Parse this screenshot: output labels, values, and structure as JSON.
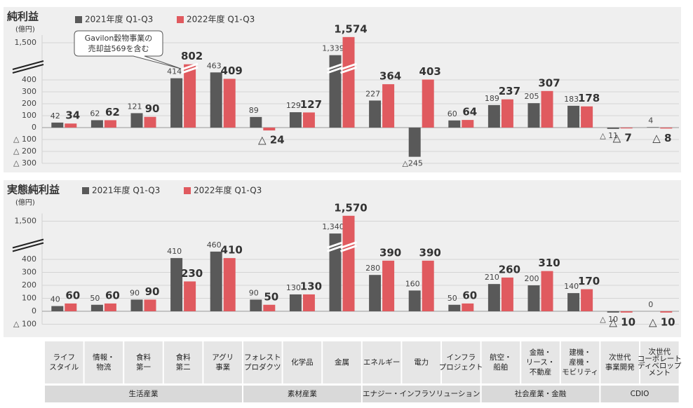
{
  "chart_data": [
    {
      "type": "bar",
      "title": "純利益",
      "y_label": "(億円)",
      "annotation": [
        "Gavilon穀物事業の",
        "売却益569を含む"
      ],
      "series": [
        {
          "name": "2021年度 Q1-Q3",
          "color": "#595959",
          "values": [
            42,
            62,
            121,
            414,
            463,
            89,
            129,
            1339,
            227,
            -245,
            60,
            189,
            205,
            183,
            -11,
            4
          ],
          "value_labels": [
            "42",
            "62",
            "121",
            "414",
            "463",
            "89",
            "129",
            "1,339",
            "227",
            "△245",
            "60",
            "189",
            "205",
            "183",
            "△ 11",
            "4"
          ]
        },
        {
          "name": "2022年度 Q1-Q3",
          "color": "#e05a5f",
          "values": [
            34,
            62,
            90,
            802,
            409,
            -24,
            127,
            1574,
            364,
            403,
            64,
            237,
            307,
            178,
            -7,
            -8
          ],
          "value_labels": [
            "34",
            "62",
            "90",
            "802",
            "409",
            "△ 24",
            "127",
            "1,574",
            "364",
            "403",
            "64",
            "237",
            "307",
            "178",
            "△ 7",
            "△ 8"
          ]
        }
      ],
      "ylim": [
        -300,
        1600
      ],
      "yticks": [
        {
          "value": -300,
          "label": "△ 300"
        },
        {
          "value": -200,
          "label": "△ 200"
        },
        {
          "value": -100,
          "label": "△ 100"
        },
        0,
        100,
        200,
        300,
        400,
        {
          "value": 1500,
          "label": "1,500"
        }
      ],
      "axis_break": [
        500,
        1300
      ],
      "grid": true
    },
    {
      "type": "bar",
      "title": "実態純利益",
      "y_label": "(億円)",
      "series": [
        {
          "name": "2021年度 Q1-Q3",
          "color": "#595959",
          "values": [
            40,
            50,
            90,
            410,
            460,
            90,
            130,
            1340,
            280,
            160,
            50,
            210,
            200,
            140,
            -10,
            0
          ],
          "value_labels": [
            "40",
            "50",
            "90",
            "410",
            "460",
            "90",
            "130",
            "1,340",
            "280",
            "160",
            "50",
            "210",
            "200",
            "140",
            "△ 10",
            "0"
          ]
        },
        {
          "name": "2022年度 Q1-Q3",
          "color": "#e05a5f",
          "values": [
            60,
            60,
            90,
            230,
            410,
            50,
            130,
            1570,
            390,
            390,
            60,
            260,
            310,
            170,
            -10,
            -10
          ],
          "value_labels": [
            "60",
            "60",
            "90",
            "230",
            "410",
            "50",
            "130",
            "1,570",
            "390",
            "390",
            "60",
            "260",
            "310",
            "170",
            "△ 10",
            "△ 10"
          ]
        }
      ],
      "ylim": [
        -100,
        1600
      ],
      "yticks": [
        {
          "value": -100,
          "label": "△ 100"
        },
        0,
        100,
        200,
        300,
        400,
        {
          "value": 1500,
          "label": "1,500"
        }
      ],
      "axis_break": [
        500,
        1300
      ],
      "grid": true
    }
  ],
  "segments": {
    "groups": [
      {
        "name": "生活産業",
        "categories": [
          [
            "ライフ",
            "スタイル"
          ],
          [
            "情報・",
            "物流"
          ],
          [
            "食料",
            "第一"
          ],
          [
            "食料",
            "第二"
          ],
          [
            "アグリ",
            "事業"
          ]
        ]
      },
      {
        "name": "素材産業",
        "categories": [
          [
            "フォレスト",
            "プロダクツ"
          ],
          [
            "化学品"
          ],
          [
            "金属"
          ]
        ]
      },
      {
        "name": "エナジー・インフラソリューション",
        "categories": [
          [
            "エネルギー"
          ],
          [
            "電力"
          ],
          [
            "インフラ",
            "プロジェクト"
          ]
        ]
      },
      {
        "name": "社会産業・金融",
        "categories": [
          [
            "航空・",
            "船舶"
          ],
          [
            "金融・",
            "リース・",
            "不動産"
          ],
          [
            "建機・",
            "産機・",
            "モビリティ"
          ]
        ]
      },
      {
        "name": "CDIO",
        "categories": [
          [
            "次世代",
            "事業開発"
          ],
          [
            "次世代",
            "コーポレート",
            "ディベロップ",
            "メント"
          ]
        ]
      }
    ]
  }
}
